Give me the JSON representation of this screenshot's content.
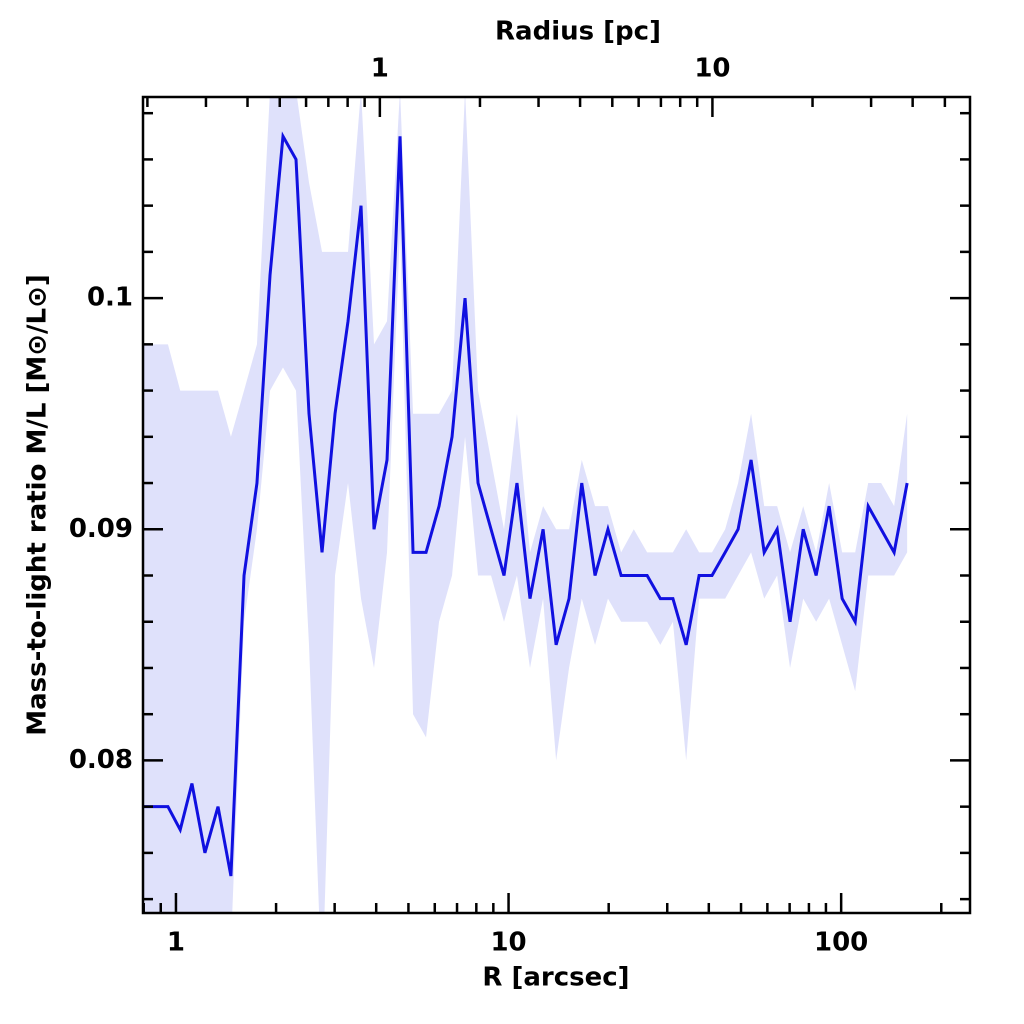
{
  "chart_data": {
    "type": "line",
    "xlabel": "R [arcsec]",
    "ylabel": "Mass-to-light ratio M/L [M⊙/L⊙]",
    "x2label": "Radius [pc]",
    "xscale": "log",
    "xlim": [
      0.796,
      244
    ],
    "xticks": [
      1,
      10,
      100
    ],
    "xminorticks": [
      0.8,
      0.9,
      2,
      3,
      4,
      5,
      6,
      7,
      8,
      9,
      20,
      30,
      40,
      50,
      60,
      70,
      80,
      90,
      200
    ],
    "x2lim": [
      0.194,
      59.5
    ],
    "x2ticks": [
      1,
      10
    ],
    "x2minorticks": [
      0.2,
      0.3,
      0.4,
      0.5,
      0.6,
      0.7,
      0.8,
      0.9,
      2,
      3,
      4,
      5,
      6,
      7,
      8,
      9,
      20,
      30,
      40,
      50
    ],
    "ylim": [
      0.0734,
      0.1087
    ],
    "yticks": [
      0.08,
      0.09,
      0.1
    ],
    "yminorticks": [
      0.074,
      0.076,
      0.078,
      0.082,
      0.084,
      0.086,
      0.088,
      0.092,
      0.094,
      0.096,
      0.098,
      0.102,
      0.104,
      0.106,
      0.108
    ],
    "x": [
      0.8,
      0.946,
      1.03,
      1.117,
      1.222,
      1.338,
      1.463,
      1.602,
      1.752,
      1.918,
      2.098,
      2.296,
      2.512,
      2.749,
      3.008,
      3.291,
      3.601,
      3.94,
      4.311,
      4.717,
      5.162,
      5.648,
      6.18,
      6.762,
      7.399,
      8.095,
      8.858,
      9.69,
      10.6,
      11.6,
      12.7,
      13.9,
      15.2,
      16.6,
      18.2,
      19.9,
      21.8,
      23.8,
      26.1,
      28.6,
      31.2,
      34.2,
      37.4,
      40.9,
      44.8,
      49.0,
      53.6,
      58.7,
      64.2,
      70.2,
      76.9,
      84.1,
      92.0,
      100.7,
      110.2,
      120.6,
      131.9,
      144.3,
      157.9
    ],
    "series": [
      {
        "color": "#1010e0",
        "values": [
          0.078,
          0.078,
          0.077,
          0.079,
          0.076,
          0.078,
          0.075,
          0.088,
          0.092,
          0.101,
          0.107,
          0.106,
          0.095,
          0.089,
          0.095,
          0.099,
          0.104,
          0.09,
          0.093,
          0.107,
          0.089,
          0.089,
          0.091,
          0.094,
          0.1,
          0.092,
          0.09,
          0.088,
          0.092,
          0.087,
          0.09,
          0.085,
          0.087,
          0.092,
          0.088,
          0.09,
          0.088,
          0.088,
          0.088,
          0.087,
          0.087,
          0.085,
          0.088,
          0.088,
          0.089,
          0.09,
          0.093,
          0.089,
          0.09,
          0.086,
          0.09,
          0.088,
          0.091,
          0.087,
          0.086,
          0.091,
          0.09,
          0.089,
          0.092
        ]
      },
      {
        "color": "#dfe1fb",
        "lower": [
          0.072,
          0.072,
          0.072,
          0.072,
          0.072,
          0.072,
          0.072,
          0.086,
          0.09,
          0.096,
          0.097,
          0.096,
          0.085,
          0.07,
          0.088,
          0.092,
          0.087,
          0.084,
          0.089,
          0.103,
          0.082,
          0.081,
          0.086,
          0.088,
          0.094,
          0.088,
          0.088,
          0.086,
          0.088,
          0.084,
          0.087,
          0.08,
          0.084,
          0.087,
          0.085,
          0.087,
          0.086,
          0.086,
          0.086,
          0.085,
          0.086,
          0.08,
          0.087,
          0.087,
          0.087,
          0.088,
          0.089,
          0.087,
          0.088,
          0.084,
          0.087,
          0.086,
          0.087,
          0.085,
          0.083,
          0.088,
          0.088,
          0.088,
          0.089
        ],
        "upper": [
          0.098,
          0.098,
          0.096,
          0.096,
          0.096,
          0.096,
          0.094,
          0.096,
          0.098,
          0.109,
          0.109,
          0.109,
          0.105,
          0.102,
          0.102,
          0.102,
          0.109,
          0.098,
          0.099,
          0.109,
          0.095,
          0.095,
          0.095,
          0.096,
          0.109,
          0.096,
          0.093,
          0.09,
          0.095,
          0.089,
          0.091,
          0.09,
          0.09,
          0.093,
          0.091,
          0.091,
          0.089,
          0.09,
          0.089,
          0.089,
          0.089,
          0.09,
          0.089,
          0.089,
          0.09,
          0.092,
          0.095,
          0.091,
          0.091,
          0.089,
          0.091,
          0.089,
          0.092,
          0.089,
          0.089,
          0.092,
          0.092,
          0.091,
          0.095
        ]
      }
    ]
  }
}
